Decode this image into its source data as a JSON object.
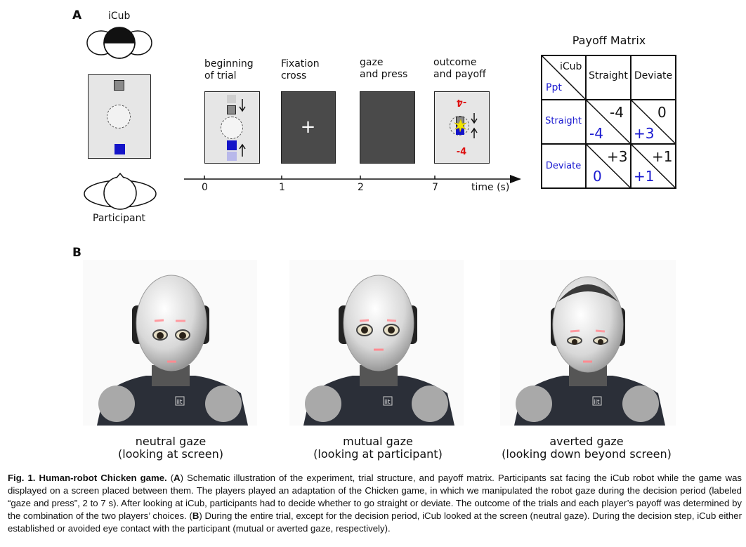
{
  "panel_a": {
    "letter": "A",
    "icub_label": "iCub",
    "participant_label": "Participant",
    "stages": [
      {
        "line1": "beginning",
        "line2": "of trial"
      },
      {
        "line1": "Fixation",
        "line2": "cross"
      },
      {
        "line1": "gaze",
        "line2": "and press"
      },
      {
        "line1": "outcome",
        "line2": "and payoff"
      }
    ],
    "fixation_symbol": "+",
    "outcome_top_value": "-4",
    "outcome_bottom_value": "-4",
    "timeline_ticks": [
      "0",
      "1",
      "2",
      "7"
    ],
    "timeline_label": "time (s)",
    "colors": {
      "robot_square": "#8a8a8a",
      "participant_square": "#1414c8",
      "outcome_red": "#dd1111",
      "dark_screen": "#4a4a4a"
    }
  },
  "payoff_matrix": {
    "title": "Payoff Matrix",
    "corner_top": "iCub",
    "corner_bottom": "Ppt",
    "col_headers": [
      "Straight",
      "Deviate"
    ],
    "row_headers": [
      "Straight",
      "Deviate"
    ],
    "cells": [
      [
        {
          "icub": "-4",
          "ppt": "-4"
        },
        {
          "icub": "0",
          "ppt": "+3"
        }
      ],
      [
        {
          "icub": "+3",
          "ppt": "0"
        },
        {
          "icub": "+1",
          "ppt": "+1"
        }
      ]
    ],
    "ppt_color": "#1a1ad0"
  },
  "panel_b": {
    "letter": "B",
    "photos": [
      {
        "line1": "neutral gaze",
        "line2": "(looking at screen)"
      },
      {
        "line1": "mutual gaze",
        "line2": "(looking at participant)"
      },
      {
        "line1": "averted gaze",
        "line2": "(looking down beyond screen)"
      }
    ],
    "chest_logo": "iit"
  },
  "caption": {
    "fig_label": "Fig. 1. Human-robot Chicken game.",
    "text_1": " (",
    "a_ref": "A",
    "text_2": ") Schematic illustration of the experiment, trial structure, and payoff matrix. Participants sat facing the iCub robot while the game was displayed on a screen placed between them. The players played an adaptation of the Chicken game, in which we manipulated the robot gaze during the decision period (labeled “gaze and press”, 2 to 7 s). After looking at iCub, participants had to decide whether to go straight or deviate. The outcome of the trials and each player’s payoff was determined by the combination of the two players’ choices. (",
    "b_ref": "B",
    "text_3": ") During the entire trial, except for the decision period, iCub looked at the screen (neutral gaze). During the decision step, iCub either established or avoided eye contact with the participant (mutual or averted gaze, respectively)."
  }
}
